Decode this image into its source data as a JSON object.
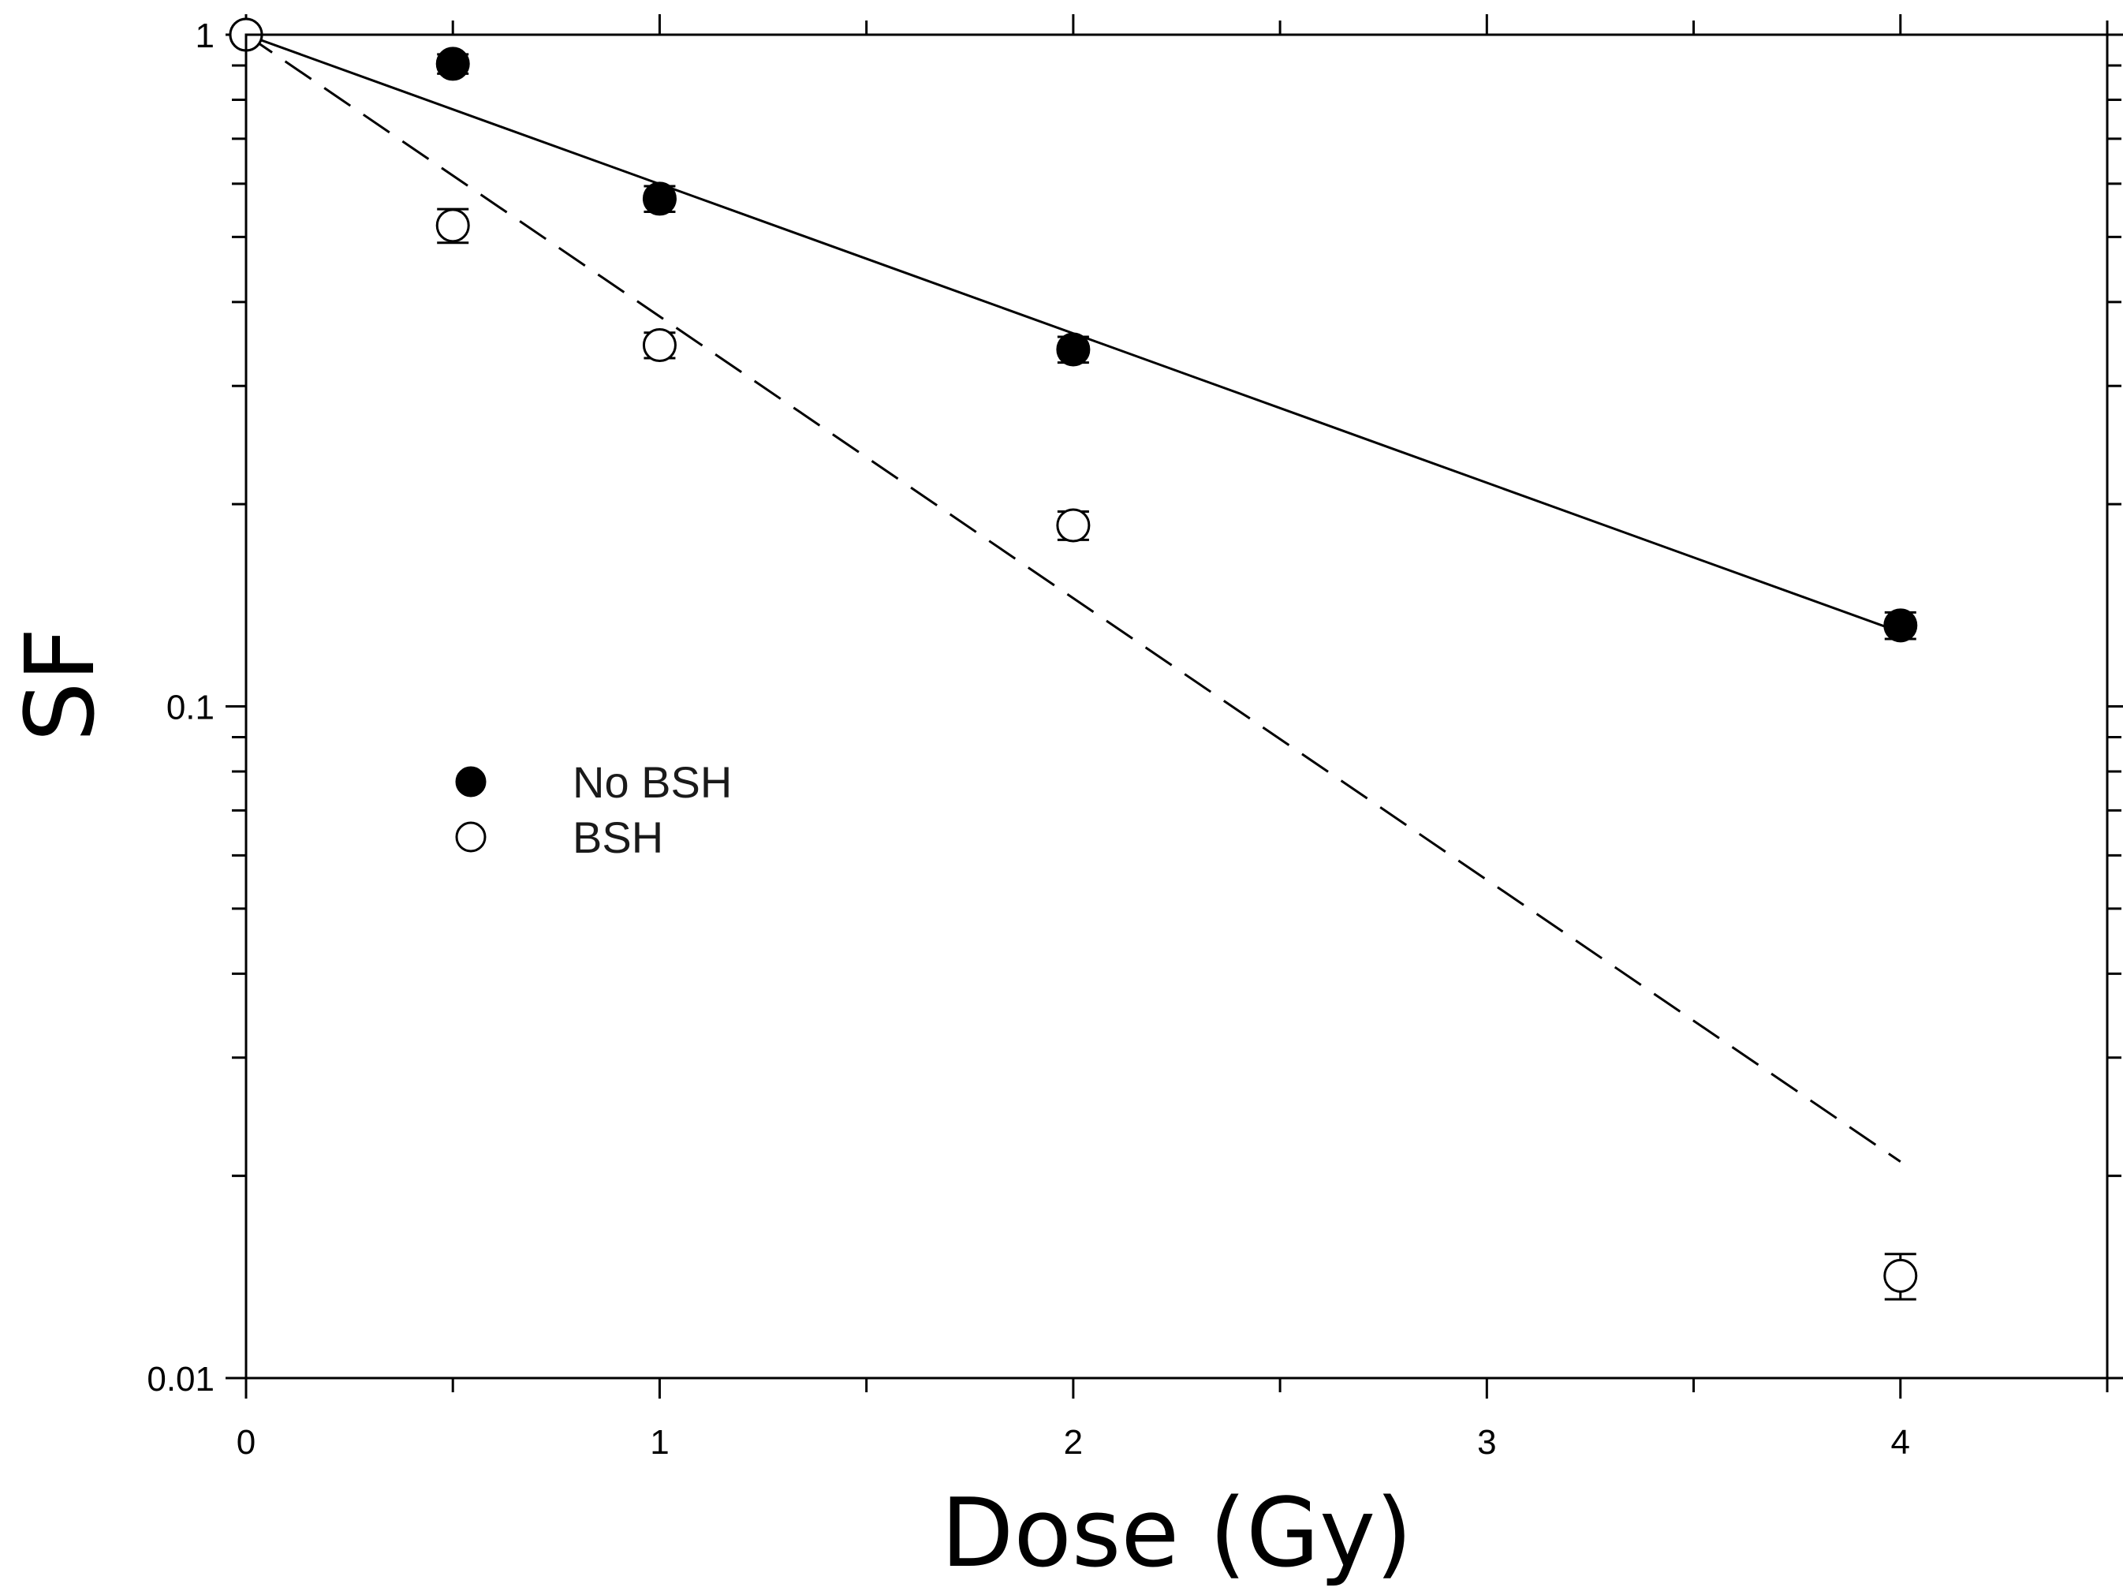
{
  "chart_data": {
    "type": "scatter",
    "title": "",
    "xlabel": "Dose (Gy)",
    "ylabel": "SF",
    "xlim": [
      0,
      4.5
    ],
    "ylim": [
      0.01,
      1
    ],
    "yscale": "log",
    "x_ticks": [
      0,
      1,
      2,
      3,
      4
    ],
    "x_tick_labels": [
      "0",
      "1",
      "2",
      "3",
      "4"
    ],
    "y_ticks": [
      0.01,
      0.1,
      1
    ],
    "y_tick_labels": [
      "0.01",
      "0.1",
      "1"
    ],
    "grid": false,
    "legend_position": "middle-left",
    "series": [
      {
        "name": "No BSH",
        "marker": "filled-circle",
        "color": "#000000",
        "points": [
          {
            "x": 0,
            "y": 1.0,
            "err": 0
          },
          {
            "x": 0.5,
            "y": 0.905,
            "err": 0.03
          },
          {
            "x": 1,
            "y": 0.57,
            "err": 0.025
          },
          {
            "x": 2,
            "y": 0.34,
            "err": 0.015
          },
          {
            "x": 4,
            "y": 0.132,
            "err": 0.006
          }
        ],
        "fit": {
          "style": "solid",
          "x": [
            0,
            4
          ],
          "y": [
            1.0,
            0.129
          ]
        }
      },
      {
        "name": "BSH",
        "marker": "open-circle",
        "color": "#000000",
        "points": [
          {
            "x": 0,
            "y": 1.0,
            "err": 0
          },
          {
            "x": 0.5,
            "y": 0.52,
            "err": 0.03
          },
          {
            "x": 1,
            "y": 0.345,
            "err": 0.015
          },
          {
            "x": 2,
            "y": 0.186,
            "err": 0.009
          },
          {
            "x": 4,
            "y": 0.0142,
            "err": 0.0011
          }
        ],
        "fit": {
          "style": "dashed",
          "x": [
            0,
            4
          ],
          "y": [
            1.0,
            0.021
          ]
        }
      }
    ]
  }
}
